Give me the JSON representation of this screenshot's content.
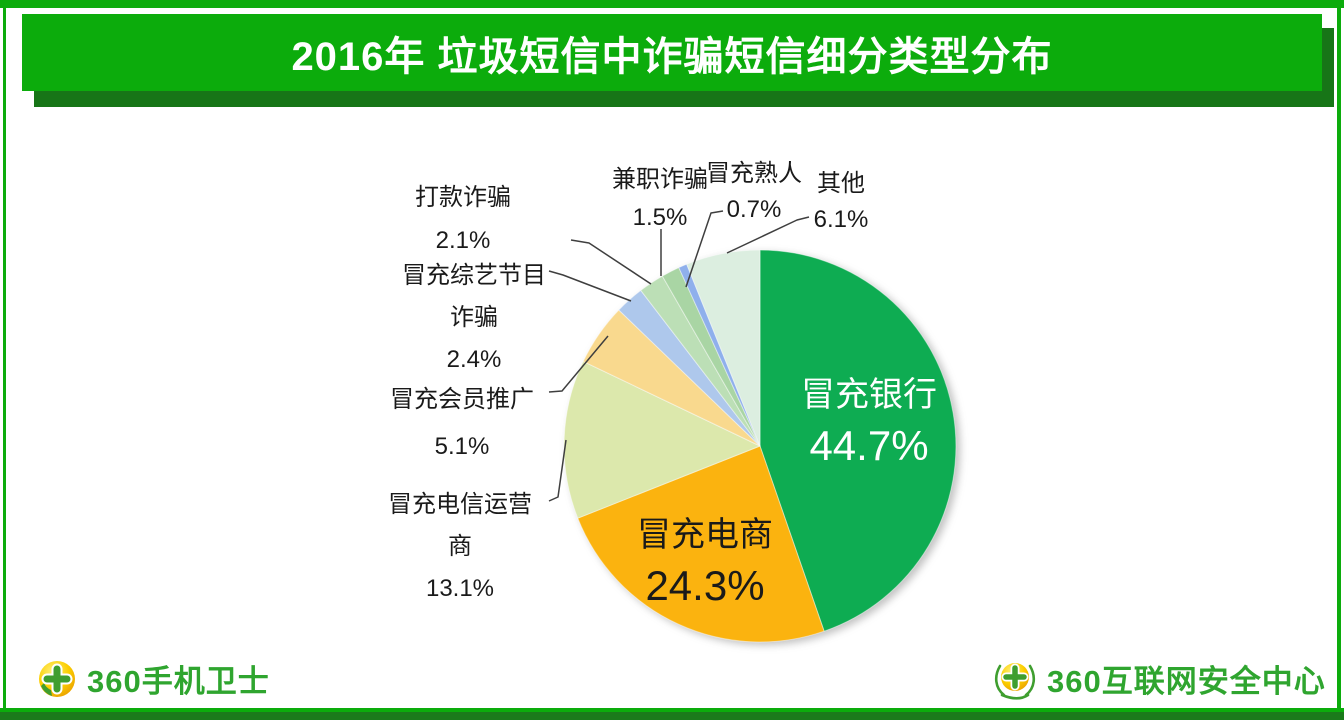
{
  "page": {
    "title": "2016年 垃圾短信中诈骗短信细分类型分布"
  },
  "colors": {
    "banner_green": "#0CAC0C",
    "banner_shadow_green": "#177517",
    "frame_green": "#0CAC0C",
    "frame_dark_green": "#1B7A1B",
    "brand_text_green": "#2FA52F",
    "leader_line": "#3F3F3F"
  },
  "chart_data": {
    "type": "pie",
    "title": "2016年 垃圾短信中诈骗短信细分类型分布",
    "unit": "%",
    "start_angle_deg": 0,
    "direction": "clockwise",
    "legend": "none",
    "slices": [
      {
        "label": "冒充银行",
        "value": 44.7,
        "pct_label": "44.7%",
        "color": "#0EAC52",
        "label_placement": "inside",
        "label_color": "#FFFFFF"
      },
      {
        "label": "冒充电商",
        "value": 24.3,
        "pct_label": "24.3%",
        "color": "#FBB30F",
        "label_placement": "inside",
        "label_color": "#1A1A1A"
      },
      {
        "label": "冒充电信运营商",
        "value": 13.1,
        "pct_label": "13.1%",
        "color": "#DCE8AC",
        "label_placement": "outside"
      },
      {
        "label": "冒充会员推广",
        "value": 5.1,
        "pct_label": "5.1%",
        "color": "#F9D98E",
        "label_placement": "outside"
      },
      {
        "label": "冒充综艺节目诈骗",
        "value": 2.4,
        "pct_label": "2.4%",
        "color": "#AEC8EC",
        "label_placement": "outside"
      },
      {
        "label": "打款诈骗",
        "value": 2.1,
        "pct_label": "2.1%",
        "color": "#BCDFB6",
        "label_placement": "outside"
      },
      {
        "label": "兼职诈骗",
        "value": 1.5,
        "pct_label": "1.5%",
        "color": "#A9D5A4",
        "label_placement": "outside"
      },
      {
        "label": "冒充熟人",
        "value": 0.7,
        "pct_label": "0.7%",
        "color": "#8FB0EC",
        "label_placement": "outside"
      },
      {
        "label": "其他",
        "value": 6.1,
        "pct_label": "6.1%",
        "color": "#DCEEE0",
        "label_placement": "outside"
      }
    ]
  },
  "footer": {
    "left_brand": "360手机卫士",
    "left_logo_icon": "360-ball-cross-icon",
    "right_brand": "360互联网安全中心",
    "right_logo_icon": "360-laurel-ball-icon"
  }
}
